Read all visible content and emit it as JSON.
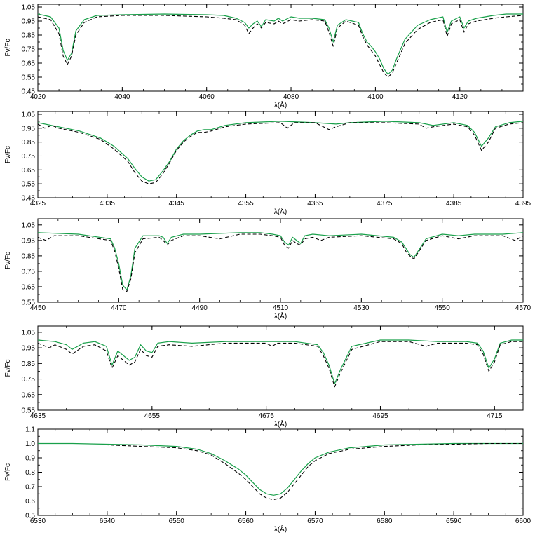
{
  "chart_data": [
    {
      "type": "line",
      "xlabel": "λ(Å)",
      "ylabel": "Fν/Fc",
      "xlim": [
        4020,
        4135
      ],
      "ylim": [
        0.45,
        1.07
      ],
      "xticks": [
        4020,
        4040,
        4060,
        4080,
        4100,
        4120
      ],
      "yticks": [
        "0.45",
        "0.55",
        "0.65",
        "0.75",
        "0.85",
        "0.95",
        "1.05"
      ],
      "series": [
        {
          "color": "#19a04a",
          "style": "solid",
          "x": [
            4020,
            4023,
            4025,
            4026,
            4027,
            4028,
            4029,
            4031,
            4034,
            4040,
            4050,
            4060,
            4064,
            4067,
            4069,
            4070,
            4071,
            4072,
            4073,
            4074,
            4076,
            4077,
            4078,
            4080,
            4082,
            4085,
            4088,
            4089,
            4090,
            4091,
            4093,
            4096,
            4097,
            4098,
            4099,
            4100,
            4101,
            4102,
            4103,
            4104,
            4105,
            4107,
            4110,
            4113,
            4116,
            4117,
            4118,
            4120,
            4121,
            4122,
            4124,
            4128,
            4131,
            4135
          ],
          "y": [
            1.0,
            0.98,
            0.9,
            0.74,
            0.67,
            0.72,
            0.88,
            0.96,
            0.99,
            0.995,
            1.0,
            0.995,
            0.99,
            0.97,
            0.94,
            0.9,
            0.93,
            0.95,
            0.91,
            0.96,
            0.95,
            0.97,
            0.95,
            0.98,
            0.97,
            0.97,
            0.96,
            0.9,
            0.8,
            0.92,
            0.96,
            0.94,
            0.86,
            0.8,
            0.77,
            0.73,
            0.68,
            0.61,
            0.57,
            0.6,
            0.68,
            0.82,
            0.92,
            0.96,
            0.98,
            0.87,
            0.95,
            0.98,
            0.9,
            0.95,
            0.97,
            0.99,
            1.0,
            1.0
          ]
        },
        {
          "color": "#000000",
          "style": "dashed",
          "x": [
            4020,
            4023,
            4025,
            4026,
            4027,
            4028,
            4029,
            4031,
            4034,
            4040,
            4050,
            4060,
            4064,
            4067,
            4069,
            4070,
            4071,
            4072,
            4073,
            4074,
            4076,
            4077,
            4078,
            4080,
            4082,
            4085,
            4088,
            4089,
            4090,
            4091,
            4093,
            4096,
            4097,
            4098,
            4099,
            4100,
            4101,
            4102,
            4103,
            4104,
            4105,
            4107,
            4110,
            4113,
            4116,
            4117,
            4118,
            4120,
            4121,
            4122,
            4124,
            4128,
            4131,
            4135
          ],
          "y": [
            0.98,
            0.96,
            0.86,
            0.7,
            0.64,
            0.7,
            0.85,
            0.94,
            0.98,
            0.99,
            0.99,
            0.98,
            0.97,
            0.96,
            0.92,
            0.86,
            0.9,
            0.93,
            0.9,
            0.94,
            0.93,
            0.95,
            0.93,
            0.96,
            0.95,
            0.96,
            0.95,
            0.87,
            0.77,
            0.9,
            0.95,
            0.92,
            0.84,
            0.78,
            0.74,
            0.7,
            0.64,
            0.58,
            0.55,
            0.58,
            0.65,
            0.79,
            0.89,
            0.94,
            0.96,
            0.84,
            0.93,
            0.96,
            0.87,
            0.93,
            0.95,
            0.97,
            0.98,
            0.99
          ]
        }
      ]
    },
    {
      "type": "line",
      "xlabel": "λ(Å)",
      "ylabel": "Fν/Fc",
      "xlim": [
        4325,
        4395
      ],
      "ylim": [
        0.45,
        1.07
      ],
      "xticks": [
        4325,
        4335,
        4345,
        4355,
        4365,
        4375,
        4385,
        4395
      ],
      "yticks": [
        "0.45",
        "0.55",
        "0.65",
        "0.75",
        "0.85",
        "0.95",
        "1.05"
      ],
      "series": [
        {
          "color": "#19a04a",
          "style": "solid",
          "x": [
            4325,
            4328,
            4331,
            4334,
            4336,
            4338,
            4339,
            4340,
            4341,
            4342,
            4343,
            4344,
            4345,
            4346,
            4347,
            4348,
            4349,
            4350,
            4352,
            4355,
            4360,
            4365,
            4368,
            4370,
            4375,
            4380,
            4382,
            4385,
            4387,
            4388,
            4389,
            4390,
            4391,
            4393,
            4395
          ],
          "y": [
            0.99,
            0.96,
            0.93,
            0.88,
            0.82,
            0.73,
            0.66,
            0.6,
            0.57,
            0.58,
            0.64,
            0.71,
            0.8,
            0.86,
            0.9,
            0.93,
            0.94,
            0.94,
            0.97,
            0.99,
            1.0,
            0.99,
            0.98,
            0.99,
            1.0,
            0.99,
            0.97,
            0.99,
            0.97,
            0.92,
            0.82,
            0.88,
            0.96,
            0.99,
            1.0
          ]
        },
        {
          "color": "#000000",
          "style": "dashed",
          "x": [
            4325,
            4326,
            4327,
            4328,
            4331,
            4334,
            4336,
            4338,
            4339,
            4340,
            4341,
            4342,
            4343,
            4344,
            4345,
            4346,
            4347,
            4348,
            4349,
            4350,
            4352,
            4355,
            4360,
            4361,
            4362,
            4365,
            4367,
            4368,
            4370,
            4375,
            4380,
            4381,
            4382,
            4385,
            4387,
            4388,
            4389,
            4390,
            4391,
            4393,
            4395
          ],
          "y": [
            0.98,
            0.95,
            0.97,
            0.95,
            0.92,
            0.87,
            0.8,
            0.71,
            0.63,
            0.57,
            0.55,
            0.56,
            0.62,
            0.7,
            0.79,
            0.85,
            0.89,
            0.92,
            0.92,
            0.93,
            0.96,
            0.98,
            0.99,
            0.95,
            0.99,
            0.99,
            0.94,
            0.96,
            0.99,
            0.99,
            0.98,
            0.95,
            0.96,
            0.98,
            0.96,
            0.9,
            0.79,
            0.85,
            0.95,
            0.98,
            0.99
          ]
        }
      ]
    },
    {
      "type": "line",
      "xlabel": "λ(Å)",
      "ylabel": "Fν/Fc",
      "xlim": [
        4450,
        4570
      ],
      "ylim": [
        0.55,
        1.09
      ],
      "xticks": [
        4450,
        4470,
        4490,
        4510,
        4530,
        4550,
        4570
      ],
      "yticks": [
        "0.55",
        "0.65",
        "0.75",
        "0.85",
        "0.95",
        "1.05"
      ],
      "series": [
        {
          "color": "#19a04a",
          "style": "solid",
          "x": [
            4450,
            4460,
            4468,
            4469,
            4470,
            4471,
            4472,
            4473,
            4474,
            4476,
            4480,
            4481,
            4482,
            4483,
            4486,
            4490,
            4500,
            4505,
            4508,
            4510,
            4511,
            4512,
            4513,
            4514,
            4515,
            4516,
            4518,
            4522,
            4530,
            4538,
            4540,
            4541,
            4542,
            4543,
            4544,
            4546,
            4550,
            4554,
            4558,
            4565,
            4570
          ],
          "y": [
            1.0,
            0.99,
            0.96,
            0.9,
            0.8,
            0.66,
            0.63,
            0.72,
            0.9,
            0.98,
            0.98,
            0.97,
            0.93,
            0.97,
            0.99,
            0.99,
            1.0,
            1.0,
            0.99,
            0.98,
            0.94,
            0.92,
            0.97,
            0.95,
            0.93,
            0.98,
            0.99,
            0.98,
            0.99,
            0.97,
            0.94,
            0.9,
            0.86,
            0.84,
            0.88,
            0.96,
            0.99,
            0.98,
            0.99,
            0.99,
            1.0
          ]
        },
        {
          "color": "#000000",
          "style": "dashed",
          "x": [
            4450,
            4452,
            4454,
            4460,
            4468,
            4469,
            4470,
            4471,
            4472,
            4473,
            4474,
            4476,
            4480,
            4481,
            4482,
            4483,
            4486,
            4490,
            4495,
            4500,
            4505,
            4508,
            4510,
            4511,
            4512,
            4513,
            4514,
            4515,
            4516,
            4518,
            4520,
            4522,
            4530,
            4538,
            4540,
            4541,
            4542,
            4543,
            4544,
            4546,
            4550,
            4554,
            4558,
            4565,
            4568,
            4570
          ],
          "y": [
            0.97,
            0.95,
            0.98,
            0.98,
            0.95,
            0.88,
            0.77,
            0.63,
            0.62,
            0.7,
            0.87,
            0.96,
            0.97,
            0.95,
            0.92,
            0.95,
            0.98,
            0.98,
            0.96,
            0.99,
            0.99,
            0.98,
            0.97,
            0.92,
            0.9,
            0.95,
            0.93,
            0.92,
            0.96,
            0.97,
            0.95,
            0.97,
            0.98,
            0.96,
            0.93,
            0.88,
            0.85,
            0.83,
            0.87,
            0.95,
            0.98,
            0.96,
            0.98,
            0.98,
            0.95,
            0.98
          ]
        }
      ]
    },
    {
      "type": "line",
      "xlabel": "λ(Å)",
      "ylabel": "Fν/Fc",
      "xlim": [
        4635,
        4720
      ],
      "ylim": [
        0.55,
        1.09
      ],
      "xticks": [
        4635,
        4655,
        4675,
        4695,
        4715
      ],
      "yticks": [
        "0.55",
        "0.65",
        "0.75",
        "0.85",
        "0.95",
        "1.05"
      ],
      "series": [
        {
          "color": "#19a04a",
          "style": "solid",
          "x": [
            4635,
            4638,
            4640,
            4641,
            4643,
            4645,
            4647,
            4648,
            4649,
            4650,
            4651,
            4652,
            4653,
            4654,
            4655,
            4656,
            4658,
            4662,
            4668,
            4672,
            4675,
            4680,
            4684,
            4685,
            4686,
            4687,
            4688,
            4690,
            4695,
            4700,
            4705,
            4710,
            4712,
            4713,
            4714,
            4715,
            4716,
            4718,
            4720
          ],
          "y": [
            1.0,
            0.99,
            0.97,
            0.94,
            0.98,
            0.99,
            0.96,
            0.84,
            0.93,
            0.9,
            0.87,
            0.89,
            0.97,
            0.93,
            0.92,
            0.98,
            0.99,
            0.98,
            0.99,
            0.99,
            0.99,
            0.99,
            0.97,
            0.92,
            0.84,
            0.72,
            0.81,
            0.96,
            1.0,
            1.0,
            0.99,
            0.99,
            0.98,
            0.93,
            0.82,
            0.88,
            0.98,
            1.0,
            1.0
          ]
        },
        {
          "color": "#000000",
          "style": "dashed",
          "x": [
            4635,
            4637,
            4638,
            4640,
            4641,
            4643,
            4645,
            4647,
            4648,
            4649,
            4650,
            4651,
            4652,
            4653,
            4654,
            4655,
            4656,
            4658,
            4662,
            4668,
            4672,
            4675,
            4676,
            4677,
            4680,
            4684,
            4685,
            4686,
            4687,
            4688,
            4690,
            4695,
            4700,
            4703,
            4705,
            4710,
            4712,
            4713,
            4714,
            4715,
            4716,
            4718,
            4720
          ],
          "y": [
            0.98,
            0.95,
            0.97,
            0.94,
            0.91,
            0.96,
            0.97,
            0.93,
            0.82,
            0.9,
            0.87,
            0.84,
            0.86,
            0.94,
            0.9,
            0.89,
            0.96,
            0.97,
            0.96,
            0.98,
            0.98,
            0.98,
            0.96,
            0.98,
            0.98,
            0.96,
            0.9,
            0.82,
            0.7,
            0.79,
            0.94,
            0.99,
            0.99,
            0.96,
            0.98,
            0.98,
            0.97,
            0.91,
            0.8,
            0.86,
            0.97,
            0.99,
            0.99
          ]
        }
      ]
    },
    {
      "type": "line",
      "xlabel": "λ(Å)",
      "ylabel": "Fν/Fc",
      "xlim": [
        6530,
        6600
      ],
      "ylim": [
        0.5,
        1.1
      ],
      "xticks": [
        6530,
        6540,
        6550,
        6560,
        6570,
        6580,
        6590,
        6600
      ],
      "yticks": [
        "0.5",
        "0.6",
        "0.7",
        "0.8",
        "0.9",
        "1.0",
        "1.1"
      ],
      "series": [
        {
          "color": "#19a04a",
          "style": "solid",
          "x": [
            6530,
            6535,
            6540,
            6545,
            6550,
            6553,
            6555,
            6557,
            6559,
            6560,
            6561,
            6562,
            6563,
            6564,
            6565,
            6566,
            6567,
            6568,
            6569,
            6570,
            6572,
            6575,
            6580,
            6585,
            6590,
            6595,
            6600
          ],
          "y": [
            1.0,
            1.0,
            0.995,
            0.99,
            0.98,
            0.96,
            0.93,
            0.88,
            0.82,
            0.78,
            0.73,
            0.68,
            0.65,
            0.64,
            0.65,
            0.69,
            0.75,
            0.81,
            0.86,
            0.9,
            0.94,
            0.97,
            0.99,
            0.995,
            1.0,
            1.0,
            1.0
          ]
        },
        {
          "color": "#000000",
          "style": "dashed",
          "x": [
            6530,
            6535,
            6540,
            6545,
            6550,
            6553,
            6555,
            6557,
            6559,
            6560,
            6561,
            6562,
            6563,
            6564,
            6565,
            6566,
            6567,
            6568,
            6569,
            6570,
            6572,
            6575,
            6580,
            6585,
            6590,
            6595,
            6600
          ],
          "y": [
            0.99,
            0.99,
            0.99,
            0.98,
            0.97,
            0.95,
            0.92,
            0.86,
            0.79,
            0.75,
            0.7,
            0.65,
            0.62,
            0.61,
            0.62,
            0.66,
            0.72,
            0.78,
            0.84,
            0.88,
            0.93,
            0.96,
            0.98,
            0.99,
            0.995,
            1.0,
            1.0
          ]
        }
      ]
    }
  ]
}
